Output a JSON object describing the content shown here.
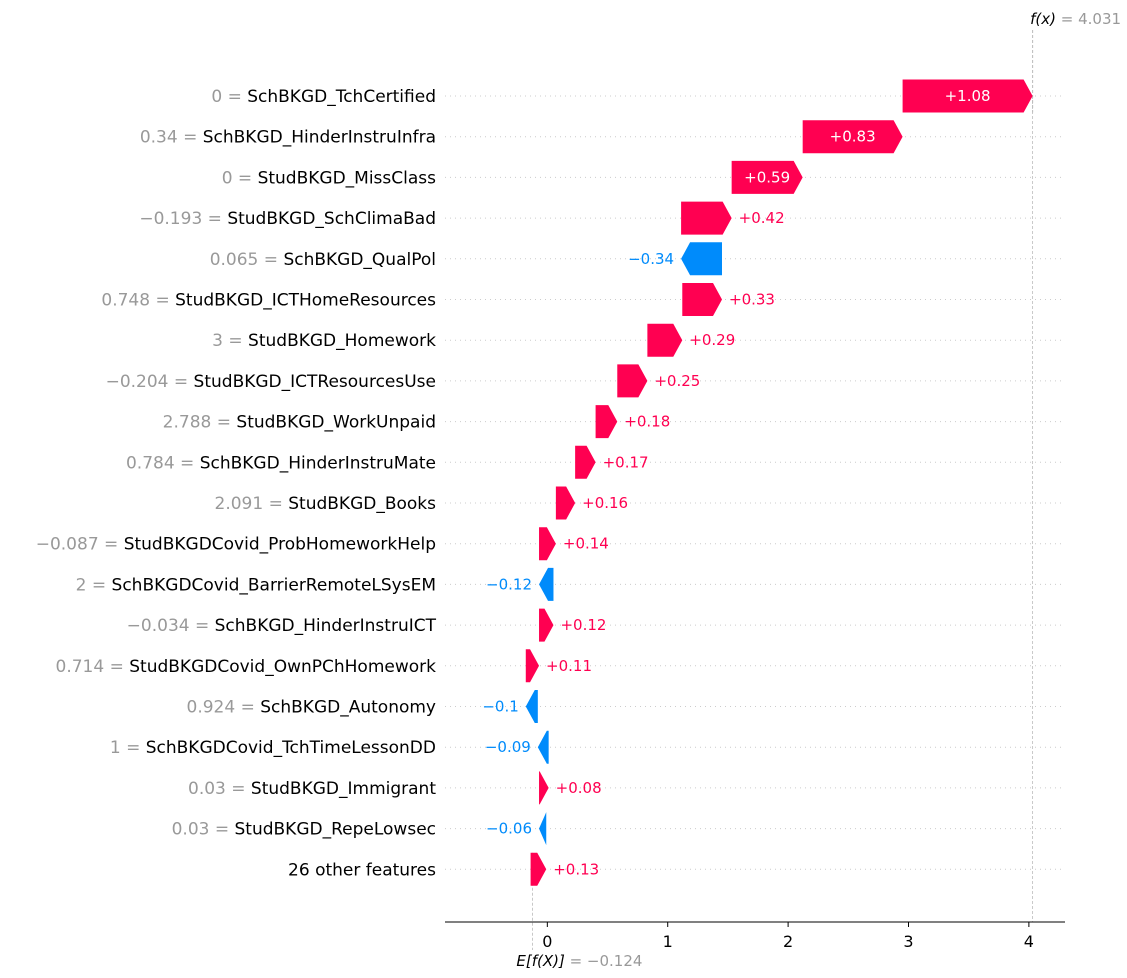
{
  "chart_data": {
    "type": "waterfall",
    "base_value": -0.124,
    "final_value": 4.031,
    "base_label": "E[f(X)]",
    "base_value_text": "= −0.124",
    "final_label": "f(x)",
    "final_value_text": "= 4.031",
    "xlim": [
      -0.85,
      4.3
    ],
    "xticks": [
      0,
      1,
      2,
      3,
      4
    ],
    "xtick_labels": [
      "0",
      "1",
      "2",
      "3",
      "4"
    ],
    "colors": {
      "positive": "#ff0051",
      "negative": "#008bfb"
    },
    "features": [
      {
        "value": "0 =",
        "name": "SchBKGD_TchCertified",
        "shap": 1.08,
        "label": "+1.08"
      },
      {
        "value": "0.34 =",
        "name": "SchBKGD_HinderInstruInfra",
        "shap": 0.83,
        "label": "+0.83"
      },
      {
        "value": "0 =",
        "name": "StudBKGD_MissClass",
        "shap": 0.59,
        "label": "+0.59"
      },
      {
        "value": "−0.193 =",
        "name": "StudBKGD_SchClimaBad",
        "shap": 0.42,
        "label": "+0.42"
      },
      {
        "value": "0.065 =",
        "name": "SchBKGD_QualPol",
        "shap": -0.34,
        "label": "−0.34"
      },
      {
        "value": "0.748 =",
        "name": "StudBKGD_ICTHomeResources",
        "shap": 0.33,
        "label": "+0.33"
      },
      {
        "value": "3 =",
        "name": "StudBKGD_Homework",
        "shap": 0.29,
        "label": "+0.29"
      },
      {
        "value": "−0.204 =",
        "name": "StudBKGD_ICTResourcesUse",
        "shap": 0.25,
        "label": "+0.25"
      },
      {
        "value": "2.788 =",
        "name": "StudBKGD_WorkUnpaid",
        "shap": 0.18,
        "label": "+0.18"
      },
      {
        "value": "0.784 =",
        "name": "SchBKGD_HinderInstruMate",
        "shap": 0.17,
        "label": "+0.17"
      },
      {
        "value": "2.091 =",
        "name": "StudBKGD_Books",
        "shap": 0.16,
        "label": "+0.16"
      },
      {
        "value": "−0.087 =",
        "name": "StudBKGDCovid_ProbHomeworkHelp",
        "shap": 0.14,
        "label": "+0.14"
      },
      {
        "value": "2 =",
        "name": "SchBKGDCovid_BarrierRemoteLSysEM",
        "shap": -0.12,
        "label": "−0.12"
      },
      {
        "value": "−0.034 =",
        "name": "SchBKGD_HinderInstruICT",
        "shap": 0.12,
        "label": "+0.12"
      },
      {
        "value": "0.714 =",
        "name": "StudBKGDCovid_OwnPChHomework",
        "shap": 0.11,
        "label": "+0.11"
      },
      {
        "value": "0.924 =",
        "name": "SchBKGD_Autonomy",
        "shap": -0.1,
        "label": "−0.1"
      },
      {
        "value": "1 =",
        "name": "SchBKGDCovid_TchTimeLessonDD",
        "shap": -0.09,
        "label": "−0.09"
      },
      {
        "value": "0.03 =",
        "name": "StudBKGD_Immigrant",
        "shap": 0.08,
        "label": "+0.08"
      },
      {
        "value": "0.03 =",
        "name": "StudBKGD_RepeLowsec",
        "shap": -0.06,
        "label": "−0.06"
      },
      {
        "value": "",
        "name": "26 other features",
        "shap": 0.13,
        "label": "+0.13"
      }
    ]
  }
}
